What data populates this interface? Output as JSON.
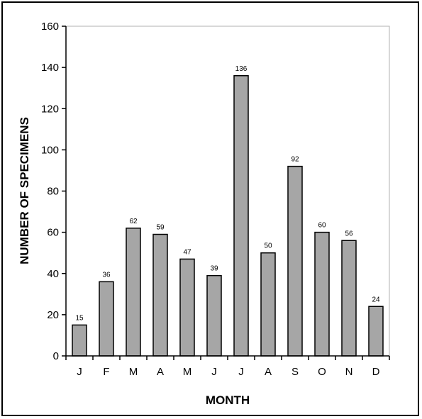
{
  "chart_data": {
    "type": "bar",
    "title": "",
    "xlabel": "MONTH",
    "ylabel": "NUMBER OF SPECIMENS",
    "categories": [
      "J",
      "F",
      "M",
      "A",
      "M",
      "J",
      "J",
      "A",
      "S",
      "O",
      "N",
      "D"
    ],
    "values": [
      15,
      36,
      62,
      59,
      47,
      39,
      136,
      50,
      92,
      60,
      56,
      24
    ],
    "data_labels": [
      "15",
      "36",
      "62",
      "59",
      "47",
      "39",
      "136",
      "50",
      "92",
      "60",
      "56",
      "24"
    ],
    "ylim": [
      0,
      160
    ],
    "yticks": [
      0,
      20,
      40,
      60,
      80,
      100,
      120,
      140,
      160
    ],
    "grid": false,
    "legend": "none",
    "bar_color": "#a6a6a6",
    "bar_edge_color": "#000000"
  }
}
